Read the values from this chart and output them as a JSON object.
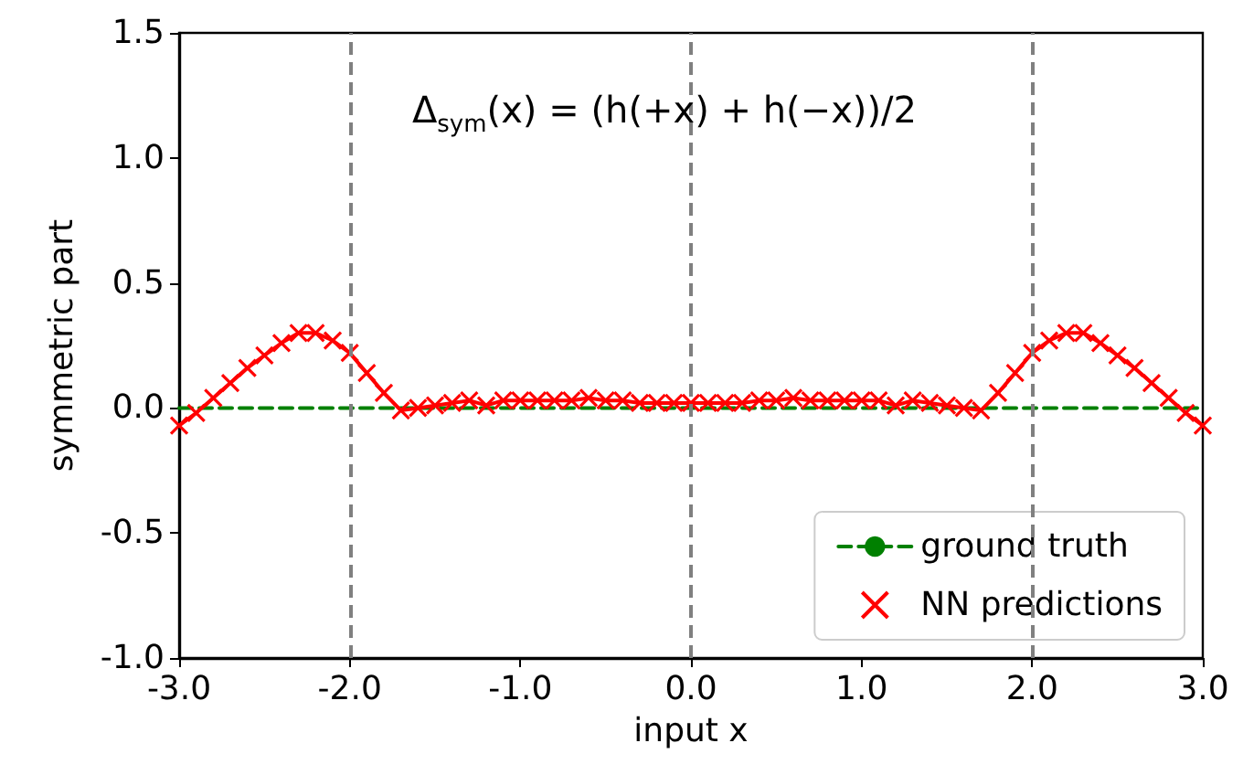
{
  "chart_data": {
    "type": "line",
    "xlabel": "input x",
    "ylabel": "symmetric part",
    "annotations": [
      "Δ$_{sym}$(x) = (h(+x) + h(−x))/2"
    ],
    "xlim": [
      -3,
      3
    ],
    "ylim": [
      -1,
      1.5
    ],
    "xticks": [
      {
        "value": -3,
        "label": "-3.0"
      },
      {
        "value": -2,
        "label": "-2.0"
      },
      {
        "value": -1,
        "label": "-1.0"
      },
      {
        "value": 0,
        "label": "0.0"
      },
      {
        "value": 1,
        "label": "1.0"
      },
      {
        "value": 2,
        "label": "2.0"
      },
      {
        "value": 3,
        "label": "3.0"
      }
    ],
    "yticks": [
      {
        "value": -1,
        "label": "-1.0"
      },
      {
        "value": -0.5,
        "label": "-0.5"
      },
      {
        "value": 0,
        "label": "0.0"
      },
      {
        "value": 0.5,
        "label": "0.5"
      },
      {
        "value": 1,
        "label": "1.0"
      },
      {
        "value": 1.5,
        "label": "1.5"
      }
    ],
    "grid": false,
    "legend": "bottom right",
    "ref_lines": [
      {
        "axis": "x",
        "value": -2,
        "color": "#808080",
        "line_style": "dashed"
      },
      {
        "axis": "x",
        "value": 0,
        "color": "#808080",
        "line_style": "dashed"
      },
      {
        "axis": "x",
        "value": 2,
        "color": "#808080",
        "line_style": "dashed"
      }
    ],
    "series": [
      {
        "name": "ground truth",
        "color": "#008000",
        "line_style": "dashed",
        "marker": "none",
        "x": [
          -3,
          3
        ],
        "values": [
          0,
          0
        ]
      },
      {
        "name": "NN predictions",
        "color": "#ff0000",
        "line_style": "solid",
        "marker": "cross",
        "x": [
          -3.0,
          -2.9,
          -2.8,
          -2.7,
          -2.6,
          -2.5,
          -2.4,
          -2.3,
          -2.2,
          -2.1,
          -2.0,
          -1.9,
          -1.8,
          -1.7,
          -1.6,
          -1.5,
          -1.4,
          -1.3,
          -1.2,
          -1.1,
          -1.0,
          -0.9,
          -0.8,
          -0.7,
          -0.6,
          -0.5,
          -0.4,
          -0.3,
          -0.2,
          -0.1,
          0.0,
          0.1,
          0.2,
          0.3,
          0.4,
          0.5,
          0.6,
          0.7,
          0.8,
          0.9,
          1.0,
          1.1,
          1.2,
          1.3,
          1.4,
          1.5,
          1.6,
          1.7,
          1.8,
          1.9,
          2.0,
          2.1,
          2.2,
          2.3,
          2.4,
          2.5,
          2.6,
          2.7,
          2.8,
          2.9,
          3.0
        ],
        "values": [
          -0.07,
          -0.02,
          0.04,
          0.1,
          0.16,
          0.21,
          0.26,
          0.3,
          0.3,
          0.27,
          0.22,
          0.14,
          0.06,
          -0.01,
          0.0,
          0.01,
          0.02,
          0.03,
          0.01,
          0.03,
          0.03,
          0.03,
          0.03,
          0.03,
          0.04,
          0.03,
          0.03,
          0.02,
          0.02,
          0.02,
          0.02,
          0.02,
          0.02,
          0.02,
          0.03,
          0.03,
          0.04,
          0.03,
          0.03,
          0.03,
          0.03,
          0.03,
          0.01,
          0.03,
          0.02,
          0.01,
          0.0,
          -0.01,
          0.06,
          0.14,
          0.22,
          0.27,
          0.3,
          0.3,
          0.26,
          0.21,
          0.16,
          0.1,
          0.04,
          -0.02,
          -0.07
        ]
      }
    ]
  }
}
